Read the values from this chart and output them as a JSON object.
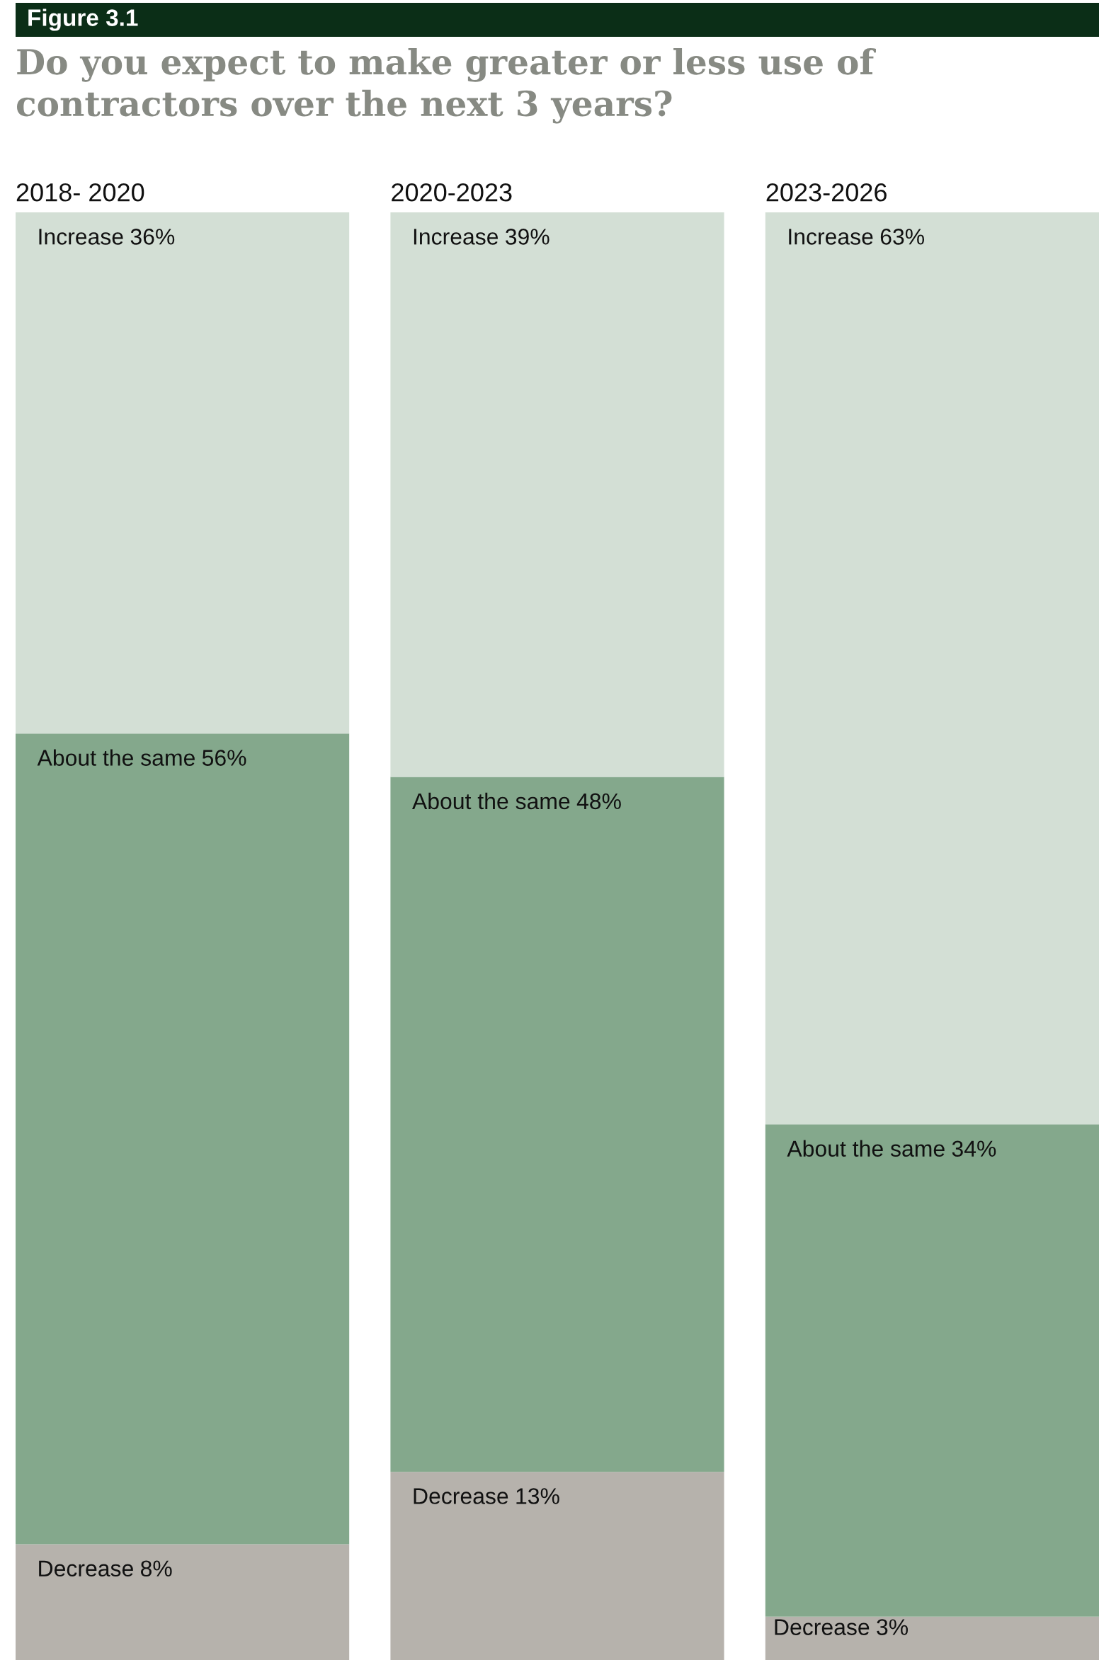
{
  "chart_data": {
    "type": "bar",
    "stacked": true,
    "title": "Do you expect to make greater or less use of contractors over the next 3 years?",
    "annotations": [
      "Figure 3.1"
    ],
    "categories": [
      "2018- 2020",
      "2020-2023",
      "2023-2026"
    ],
    "tick_labels": "x",
    "series": [
      {
        "name": "Decrease",
        "color": "#b6b2ac",
        "values": [
          8,
          13,
          3
        ],
        "value_labels": [
          "8%",
          "13%",
          "3%"
        ]
      },
      {
        "name": "About the same",
        "color": "#84a88c",
        "values": [
          56,
          48,
          34
        ],
        "value_labels": [
          "56%",
          "48%",
          "34%"
        ]
      },
      {
        "name": "Increase",
        "color": "#d3dfd5",
        "values": [
          36,
          39,
          63
        ],
        "value_labels": [
          "36%",
          "39%",
          "63%"
        ]
      }
    ]
  }
}
